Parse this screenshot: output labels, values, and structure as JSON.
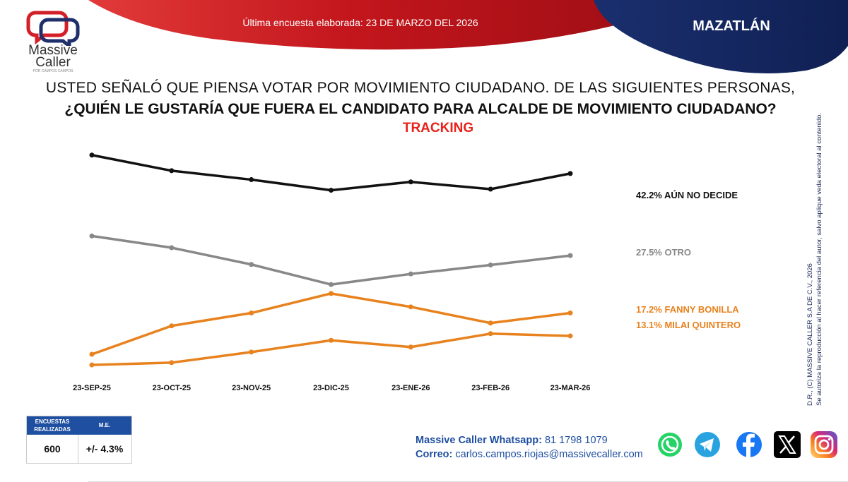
{
  "header": {
    "logo_line1": "Massive",
    "logo_line2": "Caller",
    "logo_sub": "POR CAMPOS CAMPOS",
    "survey_date": "Última encuesta elaborada: 23 DE MARZO DEL 2026",
    "city": "MAZATLÁN"
  },
  "question": {
    "line1": "USTED SEÑALÓ QUE PIENSA VOTAR POR MOVIMIENTO CIUDADANO. DE LAS SIGUIENTES PERSONAS,",
    "line2": "¿QUIÉN LE GUSTARÍA QUE FUERA EL CANDIDATO PARA ALCALDE DE MOVIMIENTO CIUDADANO?",
    "tracking": "TRACKING"
  },
  "chart_data": {
    "type": "line",
    "title": "TRACKING",
    "categories": [
      "23-SEP-25",
      "23-OCT-25",
      "23-NOV-25",
      "23-DIC-25",
      "23-ENE-26",
      "23-FEB-26",
      "23-MAR-26"
    ],
    "ylim": [
      5,
      48
    ],
    "grid": false,
    "legend": "right (end labels)",
    "series": [
      {
        "name": "AÚN NO DECIDE",
        "label": "42.2% AÚN NO DECIDE",
        "color": "#111111",
        "values": [
          45.5,
          42.7,
          41.1,
          39.2,
          40.7,
          39.4,
          42.2
        ]
      },
      {
        "name": "OTRO",
        "label": "27.5% OTRO",
        "color": "#888888",
        "values": [
          31.0,
          28.9,
          25.9,
          22.3,
          24.2,
          25.8,
          27.5
        ]
      },
      {
        "name": "FANNY BONILLA",
        "label": "17.2% FANNY BONILLA",
        "color": "#e8821e",
        "values": [
          9.8,
          14.9,
          17.2,
          20.7,
          18.3,
          15.4,
          17.2
        ]
      },
      {
        "name": "MILAI QUINTERO",
        "label": "13.1% MILAI QUINTERO",
        "color": "#e8821e",
        "values": [
          7.9,
          8.3,
          10.2,
          12.3,
          11.1,
          13.5,
          13.1
        ]
      }
    ]
  },
  "copyright": {
    "line1": "D.R., (C) MASSIVE CALLER S.A DE C.V., 2026",
    "line2": "Se autoriza la reproducción al hacer referencia del autor, salvo aplique veda electoral al contenido."
  },
  "stats": {
    "col1_header": "ENCUESTAS REALIZADAS",
    "col2_header": "M.E.",
    "surveys": "600",
    "margin": "+/- 4.3%"
  },
  "contact": {
    "whatsapp_label": "Massive Caller Whatsapp:",
    "whatsapp_number": "81 1798 1079",
    "email_label": "Correo:",
    "email": "carlos.campos.riojas@massivecaller.com"
  },
  "social": {
    "whatsapp_color": "#25d366",
    "telegram_color": "#29a3e0",
    "facebook_color": "#1877f2",
    "x_color": "#000000",
    "instagram_color": "#d62976"
  },
  "colors": {
    "brand_red": "#e8231b",
    "brand_navy": "#1c2a5a"
  }
}
